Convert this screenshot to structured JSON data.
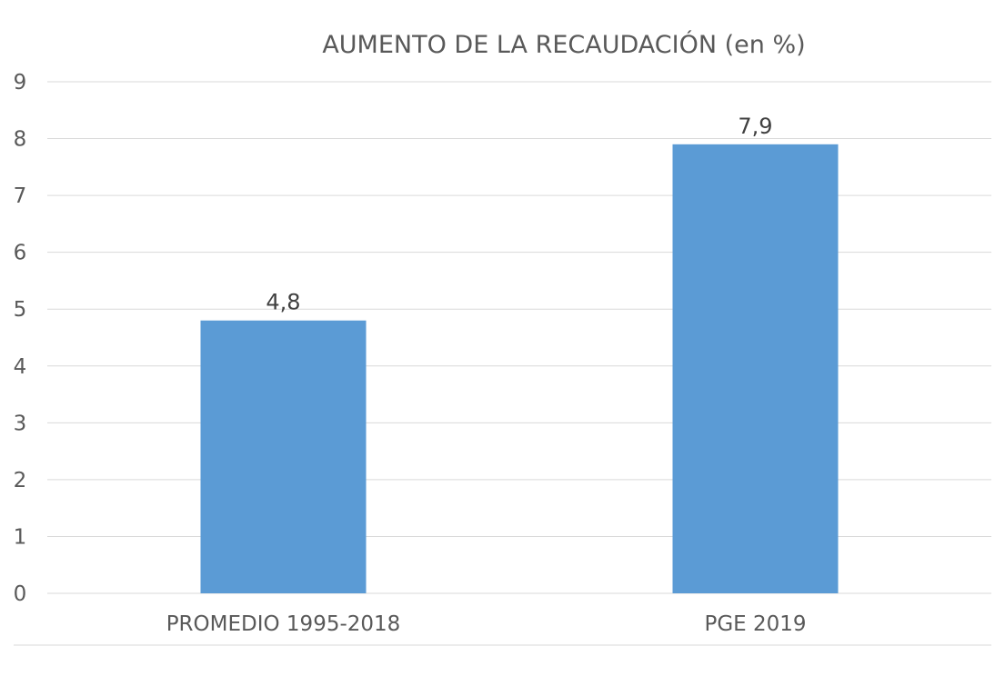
{
  "chart_data": {
    "type": "bar",
    "title": "AUMENTO DE LA RECAUDACIÓN (en %)",
    "categories": [
      "PROMEDIO 1995-2018",
      "PGE 2019"
    ],
    "values": [
      4.8,
      7.9
    ],
    "data_labels": [
      "4,8",
      "7,9"
    ],
    "xlabel": "",
    "ylabel": "",
    "ylim": [
      0,
      9
    ],
    "yticks": [
      "0",
      "1",
      "2",
      "3",
      "4",
      "5",
      "6",
      "7",
      "8",
      "9"
    ],
    "grid": true,
    "legend": "none",
    "bar_color": "#5b9bd5"
  }
}
